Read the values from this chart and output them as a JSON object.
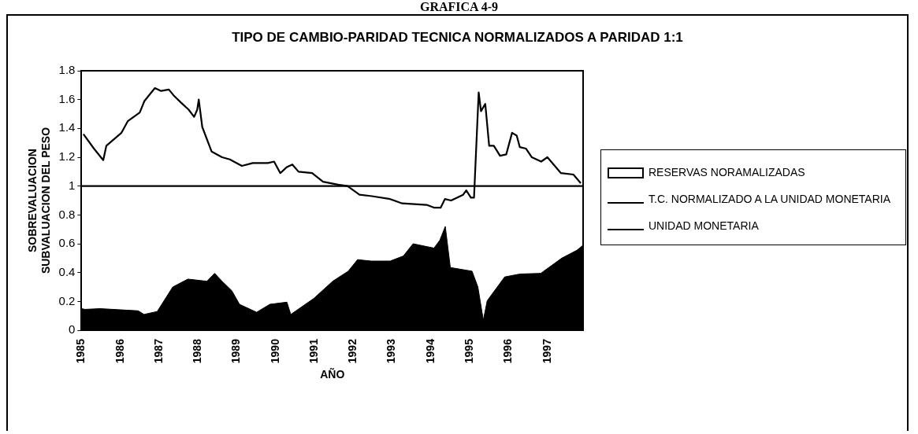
{
  "chart_data": {
    "type": "line",
    "title": "TIPO DE CAMBIO-PARIDAD TECNICA  NORMALIZADOS A PARIDAD 1:1",
    "xlabel": "AÑO",
    "ylabel": "SOBREVALUACION\nSUBVALUACION DEL PESO",
    "annotations": [
      "GRAFICA 4-9"
    ],
    "xlim": [
      1985,
      1997.92
    ],
    "xticks": [
      1985,
      1986,
      1987,
      1988,
      1989,
      1990,
      1991,
      1992,
      1993,
      1994,
      1995,
      1996,
      1997
    ],
    "ylim": [
      0,
      1.8
    ],
    "yticks": [
      0,
      0.2,
      0.4,
      0.6,
      0.8,
      1,
      1.2,
      1.4,
      1.6,
      1.8
    ],
    "grid": false,
    "legend": "right",
    "marker": "none",
    "line_style": "solid",
    "series": [
      {
        "name": "RESERVAS   NORAMALIZADAS",
        "type": "area",
        "color": "#000000",
        "x": [
          1985,
          1985.09,
          1985.48,
          1986.46,
          1986.61,
          1986.95,
          1987.35,
          1987.74,
          1988.23,
          1988.43,
          1988.62,
          1988.87,
          1989.07,
          1989.51,
          1989.85,
          1990.29,
          1990.39,
          1990.98,
          1991.47,
          1991.87,
          1992.11,
          1992.46,
          1992.95,
          1993.29,
          1993.54,
          1994.08,
          1994.23,
          1994.37,
          1994.5,
          1995.06,
          1995.21,
          1995.35,
          1995.45,
          1995.9,
          1996.29,
          1996.83,
          1997.37,
          1997.76,
          1997.92
        ],
        "values": [
          0.15,
          0.145,
          0.15,
          0.135,
          0.11,
          0.13,
          0.3,
          0.355,
          0.34,
          0.395,
          0.34,
          0.275,
          0.18,
          0.125,
          0.18,
          0.195,
          0.11,
          0.22,
          0.34,
          0.41,
          0.49,
          0.48,
          0.48,
          0.515,
          0.6,
          0.57,
          0.625,
          0.72,
          0.435,
          0.41,
          0.3,
          0.07,
          0.205,
          0.37,
          0.39,
          0.395,
          0.5,
          0.555,
          0.59
        ]
      },
      {
        "name": "T.C. NORMALIZADO A LA UNIDAD MONETARIA",
        "type": "line",
        "color": "#000000",
        "x": [
          1985.05,
          1985.32,
          1985.56,
          1985.64,
          1986.03,
          1986.19,
          1986.5,
          1986.62,
          1986.89,
          1987.05,
          1987.25,
          1987.37,
          1987.56,
          1987.76,
          1987.9,
          1987.98,
          1988.02,
          1988.11,
          1988.35,
          1988.62,
          1988.82,
          1989.13,
          1989.41,
          1989.8,
          1989.96,
          1990.12,
          1990.28,
          1990.43,
          1990.59,
          1990.94,
          1991.22,
          1991.61,
          1991.85,
          1992.16,
          1992.48,
          1992.95,
          1993.26,
          1993.89,
          1994.09,
          1994.25,
          1994.36,
          1994.52,
          1994.83,
          1994.91,
          1995.03,
          1995.11,
          1995.23,
          1995.29,
          1995.4,
          1995.5,
          1995.62,
          1995.78,
          1995.94,
          1996.09,
          1996.21,
          1996.29,
          1996.45,
          1996.6,
          1996.84,
          1997,
          1997.35,
          1997.67,
          1997.86
        ],
        "values": [
          1.36,
          1.26,
          1.18,
          1.28,
          1.37,
          1.45,
          1.51,
          1.59,
          1.68,
          1.66,
          1.67,
          1.63,
          1.58,
          1.53,
          1.48,
          1.53,
          1.6,
          1.41,
          1.24,
          1.2,
          1.185,
          1.14,
          1.16,
          1.16,
          1.17,
          1.09,
          1.13,
          1.15,
          1.1,
          1.09,
          1.03,
          1.01,
          1,
          0.94,
          0.93,
          0.91,
          0.88,
          0.87,
          0.85,
          0.85,
          0.91,
          0.9,
          0.94,
          0.97,
          0.92,
          0.92,
          1.65,
          1.52,
          1.57,
          1.28,
          1.28,
          1.21,
          1.22,
          1.37,
          1.35,
          1.27,
          1.26,
          1.2,
          1.17,
          1.2,
          1.09,
          1.08,
          1.02
        ]
      },
      {
        "name": "UNIDAD MONETARIA",
        "type": "line",
        "color": "#000000",
        "x": [
          1985,
          1997.92
        ],
        "values": [
          1,
          1
        ]
      }
    ]
  }
}
